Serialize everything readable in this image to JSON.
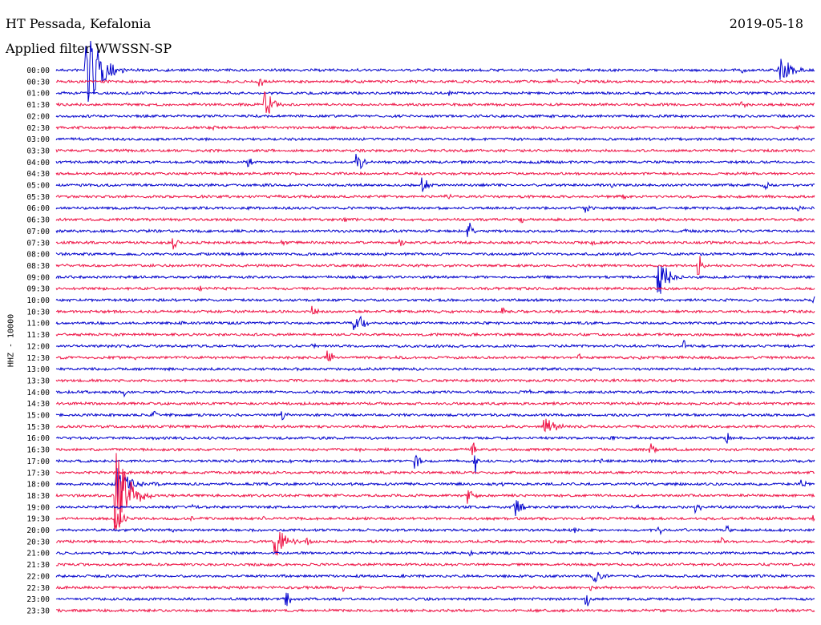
{
  "header": {
    "station": "HT Pessada, Kefalonia",
    "date": "2019-05-18",
    "filter": "Applied filter WWSSN-SP"
  },
  "chart_data": {
    "type": "line",
    "title": "HT Pessada, Kefalonia",
    "date": "2019-05-18",
    "filter": "Applied filter WWSSN-SP",
    "ylabel": "HHZ - 10000",
    "rows": [
      "00:00",
      "00:30",
      "01:00",
      "01:30",
      "02:00",
      "02:30",
      "03:00",
      "03:30",
      "04:00",
      "04:30",
      "05:00",
      "05:30",
      "06:00",
      "06:30",
      "07:00",
      "07:30",
      "08:00",
      "08:30",
      "09:00",
      "09:30",
      "10:00",
      "10:30",
      "11:00",
      "11:30",
      "12:00",
      "12:30",
      "13:00",
      "13:30",
      "14:00",
      "14:30",
      "15:00",
      "15:30",
      "16:00",
      "16:30",
      "17:00",
      "17:30",
      "18:00",
      "18:30",
      "19:00",
      "19:30",
      "20:00",
      "20:30",
      "21:00",
      "21:30",
      "22:00",
      "22:30",
      "23:00",
      "23:30"
    ],
    "series_colors": [
      "#0000cc",
      "#ee1144"
    ],
    "events": [
      {
        "row": 0,
        "x": 0.04,
        "amp": 60,
        "dur": 0.05
      },
      {
        "row": 0,
        "x": 0.955,
        "amp": 22,
        "dur": 0.04
      },
      {
        "row": 0,
        "x": 0.905,
        "amp": 5,
        "dur": 0.015
      },
      {
        "row": 1,
        "x": 0.27,
        "amp": 9,
        "dur": 0.01
      },
      {
        "row": 1,
        "x": 0.66,
        "amp": 4,
        "dur": 0.01
      },
      {
        "row": 1,
        "x": 0.69,
        "amp": 3,
        "dur": 0.01
      },
      {
        "row": 2,
        "x": 0.52,
        "amp": 4,
        "dur": 0.008
      },
      {
        "row": 3,
        "x": 0.275,
        "amp": 22,
        "dur": 0.03
      },
      {
        "row": 3,
        "x": 0.905,
        "amp": 6,
        "dur": 0.015
      },
      {
        "row": 5,
        "x": 0.21,
        "amp": 3,
        "dur": 0.01
      },
      {
        "row": 5,
        "x": 0.98,
        "amp": 3,
        "dur": 0.01
      },
      {
        "row": 8,
        "x": 0.255,
        "amp": 8,
        "dur": 0.012
      },
      {
        "row": 8,
        "x": 0.398,
        "amp": 14,
        "dur": 0.02
      },
      {
        "row": 10,
        "x": 0.485,
        "amp": 10,
        "dur": 0.02
      },
      {
        "row": 10,
        "x": 0.935,
        "amp": 6,
        "dur": 0.02
      },
      {
        "row": 10,
        "x": 0.735,
        "amp": 3,
        "dur": 0.01
      },
      {
        "row": 11,
        "x": 0.515,
        "amp": 6,
        "dur": 0.02
      },
      {
        "row": 11,
        "x": 0.75,
        "amp": 3,
        "dur": 0.03
      },
      {
        "row": 12,
        "x": 0.7,
        "amp": 6,
        "dur": 0.015
      },
      {
        "row": 12,
        "x": 0.98,
        "amp": 4,
        "dur": 0.02
      },
      {
        "row": 13,
        "x": 0.615,
        "amp": 4,
        "dur": 0.01
      },
      {
        "row": 13,
        "x": 0.38,
        "amp": 3,
        "dur": 0.02
      },
      {
        "row": 14,
        "x": 0.545,
        "amp": 12,
        "dur": 0.015
      },
      {
        "row": 14,
        "x": 0.83,
        "amp": 4,
        "dur": 0.01
      },
      {
        "row": 15,
        "x": 0.155,
        "amp": 9,
        "dur": 0.015
      },
      {
        "row": 15,
        "x": 0.455,
        "amp": 7,
        "dur": 0.012
      },
      {
        "row": 15,
        "x": 0.3,
        "amp": 3,
        "dur": 0.03
      },
      {
        "row": 15,
        "x": 0.71,
        "amp": 3,
        "dur": 0.01
      },
      {
        "row": 16,
        "x": 0.245,
        "amp": 4,
        "dur": 0.01
      },
      {
        "row": 17,
        "x": 0.848,
        "amp": 18,
        "dur": 0.012
      },
      {
        "row": 18,
        "x": 0.795,
        "amp": 26,
        "dur": 0.035
      },
      {
        "row": 19,
        "x": 0.19,
        "amp": 6,
        "dur": 0.01
      },
      {
        "row": 20,
        "x": 1.0,
        "amp": 6,
        "dur": 0.01
      },
      {
        "row": 21,
        "x": 0.34,
        "amp": 8,
        "dur": 0.02
      },
      {
        "row": 21,
        "x": 0.59,
        "amp": 5,
        "dur": 0.008
      },
      {
        "row": 22,
        "x": 0.165,
        "amp": 6,
        "dur": 0.012
      },
      {
        "row": 22,
        "x": 0.395,
        "amp": 16,
        "dur": 0.03
      },
      {
        "row": 23,
        "x": 0.98,
        "amp": 3,
        "dur": 0.03
      },
      {
        "row": 24,
        "x": 0.34,
        "amp": 3,
        "dur": 0.02
      },
      {
        "row": 24,
        "x": 0.828,
        "amp": 9,
        "dur": 0.01
      },
      {
        "row": 25,
        "x": 0.36,
        "amp": 10,
        "dur": 0.02
      },
      {
        "row": 25,
        "x": 0.69,
        "amp": 5,
        "dur": 0.012
      },
      {
        "row": 25,
        "x": 0.77,
        "amp": 3,
        "dur": 0.008
      },
      {
        "row": 25,
        "x": 0.105,
        "amp": 3,
        "dur": 0.008
      },
      {
        "row": 28,
        "x": 0.09,
        "amp": 6,
        "dur": 0.012
      },
      {
        "row": 28,
        "x": 0.625,
        "amp": 4,
        "dur": 0.01
      },
      {
        "row": 30,
        "x": 0.128,
        "amp": 7,
        "dur": 0.015
      },
      {
        "row": 30,
        "x": 0.3,
        "amp": 8,
        "dur": 0.015
      },
      {
        "row": 31,
        "x": 0.645,
        "amp": 16,
        "dur": 0.04
      },
      {
        "row": 32,
        "x": 0.885,
        "amp": 8,
        "dur": 0.012
      },
      {
        "row": 32,
        "x": 0.735,
        "amp": 3,
        "dur": 0.01
      },
      {
        "row": 33,
        "x": 0.785,
        "amp": 8,
        "dur": 0.015
      },
      {
        "row": 33,
        "x": 0.55,
        "amp": 12,
        "dur": 0.008
      },
      {
        "row": 33,
        "x": 0.4,
        "amp": 3,
        "dur": 0.008
      },
      {
        "row": 34,
        "x": 0.475,
        "amp": 10,
        "dur": 0.015
      },
      {
        "row": 34,
        "x": 0.553,
        "amp": 16,
        "dur": 0.008
      },
      {
        "row": 34,
        "x": 0.31,
        "amp": 3,
        "dur": 0.008
      },
      {
        "row": 34,
        "x": 0.72,
        "amp": 3,
        "dur": 0.008
      },
      {
        "row": 36,
        "x": 0.08,
        "amp": 30,
        "dur": 0.04
      },
      {
        "row": 36,
        "x": 0.13,
        "amp": 5,
        "dur": 0.02
      },
      {
        "row": 36,
        "x": 0.985,
        "amp": 6,
        "dur": 0.02
      },
      {
        "row": 36,
        "x": 0.59,
        "amp": 3,
        "dur": 0.01
      },
      {
        "row": 37,
        "x": 0.08,
        "amp": 55,
        "dur": 0.05
      },
      {
        "row": 37,
        "x": 0.545,
        "amp": 12,
        "dur": 0.02
      },
      {
        "row": 38,
        "x": 0.605,
        "amp": 14,
        "dur": 0.025
      },
      {
        "row": 38,
        "x": 0.845,
        "amp": 10,
        "dur": 0.015
      },
      {
        "row": 38,
        "x": 0.18,
        "amp": 4,
        "dur": 0.008
      },
      {
        "row": 38,
        "x": 0.77,
        "amp": 3,
        "dur": 0.01
      },
      {
        "row": 39,
        "x": 0.08,
        "amp": 20,
        "dur": 0.02
      },
      {
        "row": 39,
        "x": 0.18,
        "amp": 5,
        "dur": 0.008
      },
      {
        "row": 39,
        "x": 0.275,
        "amp": 4,
        "dur": 0.008
      },
      {
        "row": 39,
        "x": 1.0,
        "amp": 5,
        "dur": 0.008
      },
      {
        "row": 40,
        "x": 0.795,
        "amp": 10,
        "dur": 0.015
      },
      {
        "row": 40,
        "x": 0.885,
        "amp": 7,
        "dur": 0.012
      },
      {
        "row": 40,
        "x": 0.685,
        "amp": 4,
        "dur": 0.008
      },
      {
        "row": 40,
        "x": 0.155,
        "amp": 4,
        "dur": 0.01
      },
      {
        "row": 41,
        "x": 0.29,
        "amp": 20,
        "dur": 0.04
      },
      {
        "row": 41,
        "x": 0.33,
        "amp": 6,
        "dur": 0.02
      },
      {
        "row": 41,
        "x": 0.88,
        "amp": 5,
        "dur": 0.008
      },
      {
        "row": 42,
        "x": 0.548,
        "amp": 5,
        "dur": 0.012
      },
      {
        "row": 44,
        "x": 0.71,
        "amp": 10,
        "dur": 0.03
      },
      {
        "row": 44,
        "x": 0.46,
        "amp": 3,
        "dur": 0.008
      },
      {
        "row": 45,
        "x": 0.38,
        "amp": 6,
        "dur": 0.01
      },
      {
        "row": 45,
        "x": 0.705,
        "amp": 4,
        "dur": 0.01
      },
      {
        "row": 46,
        "x": 0.305,
        "amp": 9,
        "dur": 0.02
      },
      {
        "row": 46,
        "x": 0.7,
        "amp": 12,
        "dur": 0.008
      },
      {
        "row": 47,
        "x": 0.95,
        "amp": 3,
        "dur": 0.01
      }
    ]
  }
}
